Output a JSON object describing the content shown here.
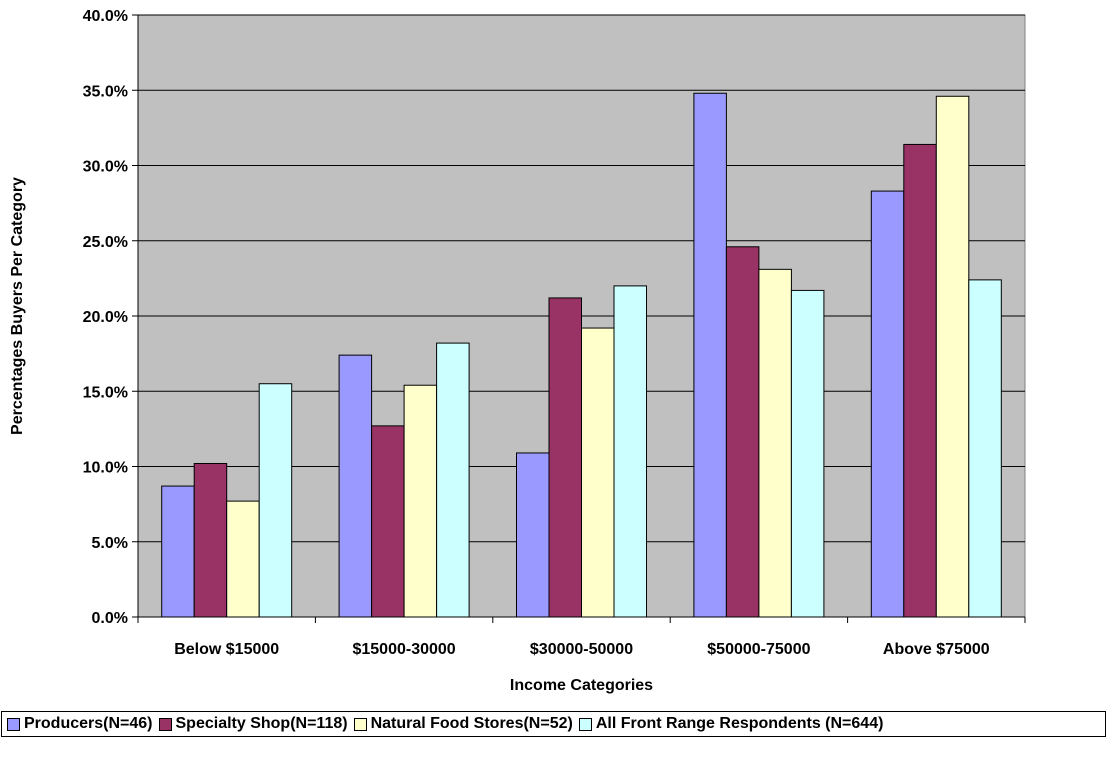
{
  "chart_data": {
    "type": "bar",
    "xlabel": "Income Categories",
    "ylabel": "Percentages Buyers Per Category",
    "ylim": [
      0,
      40
    ],
    "yticks": [
      "0.0%",
      "5.0%",
      "10.0%",
      "15.0%",
      "20.0%",
      "25.0%",
      "30.0%",
      "35.0%",
      "40.0%"
    ],
    "categories": [
      "Below $15000",
      "$15000-30000",
      "$30000-50000",
      "$50000-75000",
      "Above $75000"
    ],
    "grid": true,
    "legend_position": "bottom",
    "plot_background": "#c0c0c0",
    "series": [
      {
        "name": "Producers(N=46)",
        "color": "#9999ff",
        "values": [
          8.7,
          17.4,
          10.9,
          34.8,
          28.3
        ]
      },
      {
        "name": "Specialty Shop(N=118)",
        "color": "#993366",
        "values": [
          10.2,
          12.7,
          21.2,
          24.6,
          31.4
        ]
      },
      {
        "name": "Natural Food Stores(N=52)",
        "color": "#ffffcc",
        "values": [
          7.7,
          15.4,
          19.2,
          23.1,
          34.6
        ]
      },
      {
        "name": "All Front Range Respondents (N=644)",
        "color": "#ccffff",
        "values": [
          15.5,
          18.2,
          22.0,
          21.7,
          22.4
        ]
      }
    ]
  }
}
